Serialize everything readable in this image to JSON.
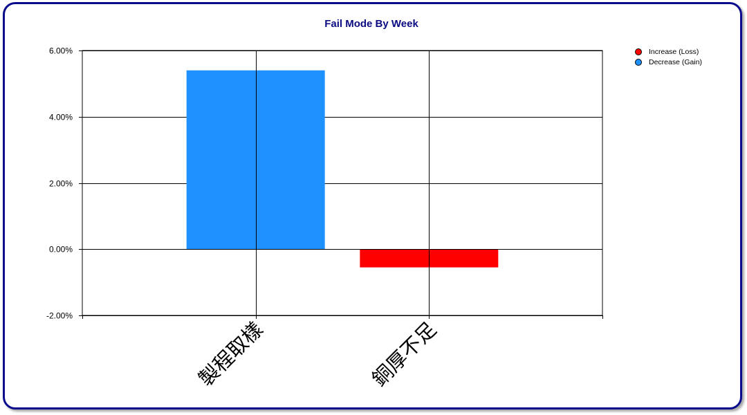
{
  "chart_data": {
    "type": "bar",
    "title": "Fail Mode By Week",
    "categories": [
      "製程取樣",
      "銅厚不足"
    ],
    "values": [
      5.4,
      -0.55
    ],
    "bar_colors": [
      "#1e90ff",
      "#ff0000"
    ],
    "ylim": [
      -2,
      6
    ],
    "yticks": [
      6,
      4,
      2,
      0,
      -2
    ],
    "ytick_labels": [
      "6.00%",
      "4.00%",
      "2.00%",
      "0.00%",
      "-2.00%"
    ],
    "grid": true,
    "legend": {
      "placement": "top-right",
      "entries": [
        {
          "label": "Increase (Loss)",
          "color": "#ff0000"
        },
        {
          "label": "Decrease (Gain)",
          "color": "#1e90ff"
        }
      ]
    }
  },
  "colors": {
    "frame_border": "#0a0a8c",
    "title": "#0b0b84"
  }
}
